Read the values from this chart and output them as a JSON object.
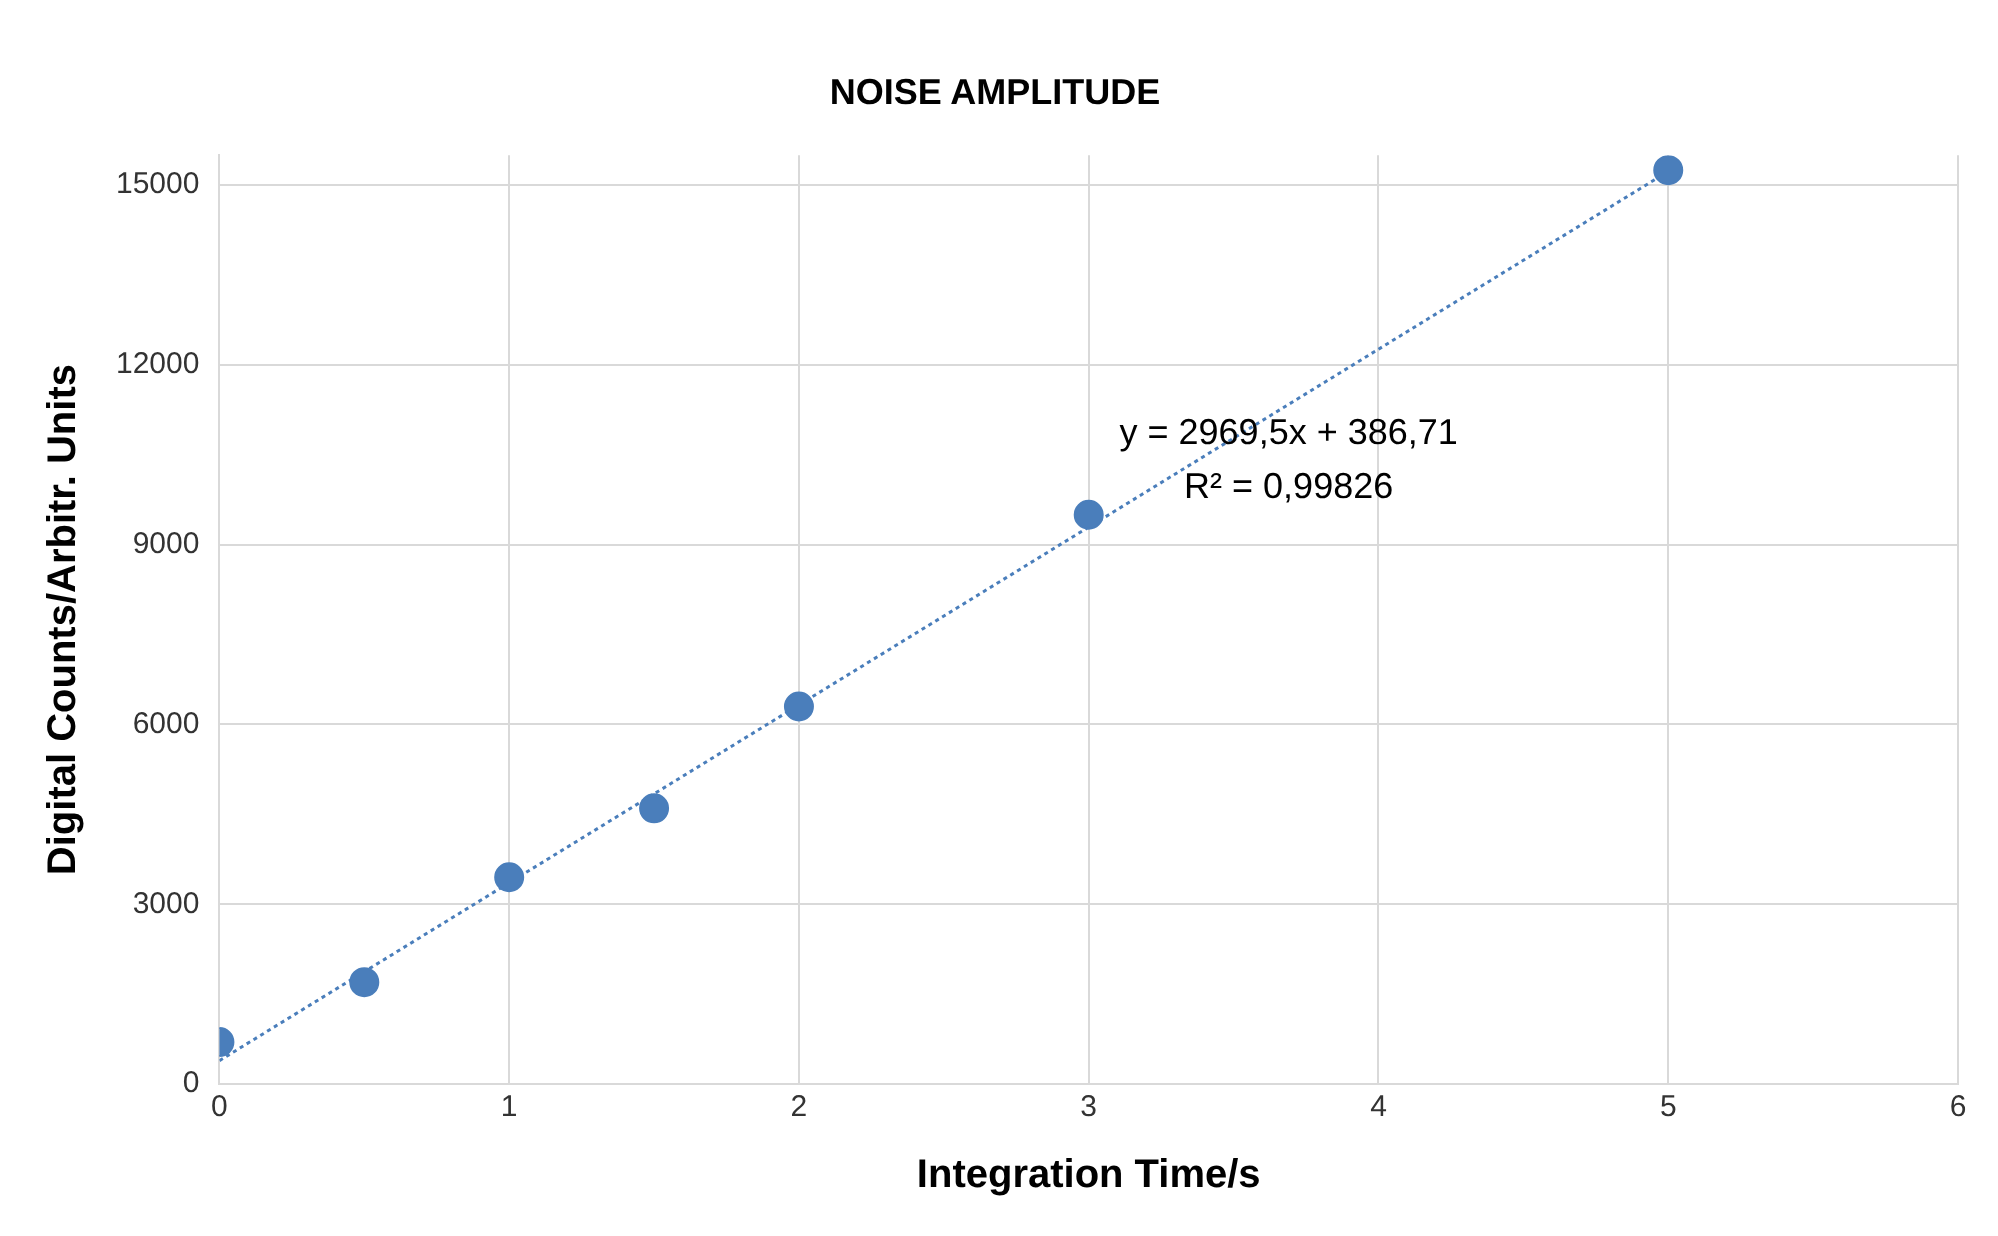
{
  "chart_data": {
    "type": "scatter",
    "title": "NOISE AMPLITUDE",
    "xlabel": "Integration Time/s",
    "ylabel": "Digital Counts/Arbitr. Units",
    "x": [
      0,
      0.5,
      1,
      1.5,
      2,
      3,
      5
    ],
    "series": [
      {
        "color": "#4a7ebb",
        "values": [
          700,
          1700,
          3450,
          4600,
          6300,
          9500,
          15250
        ],
        "marker": "circle"
      },
      {
        "type": "line",
        "color": "#4a7ebb",
        "x": [
          0,
          5
        ],
        "values": [
          390,
          15230
        ],
        "line_style": "dotted",
        "marker": "none"
      }
    ],
    "xlim": [
      0,
      6
    ],
    "xticks": [
      0,
      1,
      2,
      3,
      4,
      5,
      6
    ],
    "ylim": [
      0,
      15500
    ],
    "yticks": [
      0,
      3000,
      6000,
      9000,
      12000,
      15000
    ],
    "grid": true,
    "legend": false,
    "annotations": [
      "y = 2969,5x + 386,71",
      "R² = 0,99826"
    ]
  }
}
